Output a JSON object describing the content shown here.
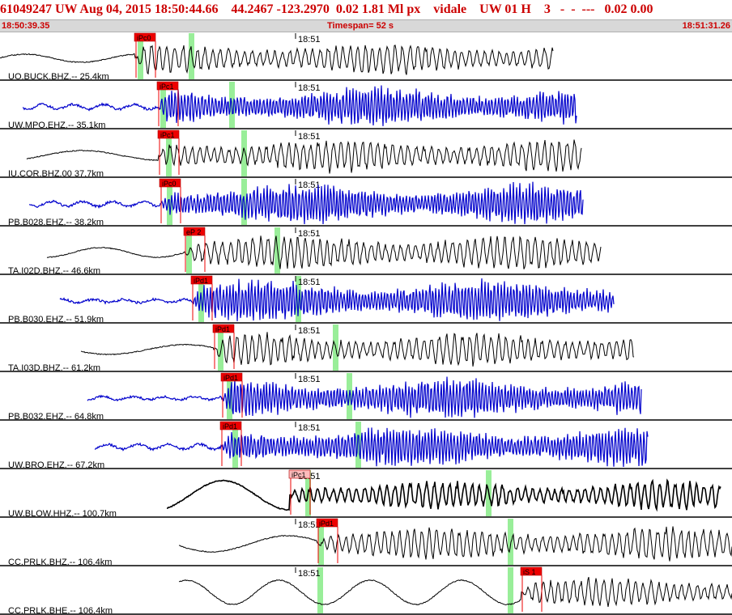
{
  "header": {
    "title": "61049247 UW Aug 04, 2015 18:50:44.66    44.2467 -123.2970  0.02 1.81 Ml px    vidale    UW 01 H    3   -  -  ---   0.02 0.00",
    "start_time": "18:50:39.35",
    "timespan_label": "Timespan=  52 s",
    "end_time": "18:51:31.26"
  },
  "colors": {
    "accent": "#cc0000",
    "blue": "#0000cc",
    "black": "#000000",
    "green": "#99ee99",
    "pick_red": "#ee0000"
  },
  "minute_mark": "18:51",
  "channels": [
    {
      "label": "UO.BUCK.BHZ.-- 25.4km",
      "color": "black",
      "pick": "iPc0"
    },
    {
      "label": "UW.MPO.EHZ.-- 35.1km",
      "color": "blue",
      "pick": "iPc1"
    },
    {
      "label": "IU.COR.BHZ.00 37.7km",
      "color": "black",
      "pick": "iPc1"
    },
    {
      "label": "PB.B028.EHZ.-- 38.2km",
      "color": "blue",
      "pick": "iPc0"
    },
    {
      "label": "TA.I02D.BHZ.-- 46.6km",
      "color": "black",
      "pick": "eP 2"
    },
    {
      "label": "PB.B030.EHZ.-- 51.9km",
      "color": "blue",
      "pick": "iPd1"
    },
    {
      "label": "TA.I03D.BHZ.-- 61.2km",
      "color": "black",
      "pick": "iPd1"
    },
    {
      "label": "PB.B032.EHZ.-- 64.8km",
      "color": "blue",
      "pick": "iPd1"
    },
    {
      "label": "UW.BRO.EHZ.-- 67.2km",
      "color": "blue",
      "pick": "iPd1"
    },
    {
      "label": "UW.BLOW.HHZ.-- 100.7km",
      "color": "black",
      "pick": "iPc1"
    },
    {
      "label": "CC.PRLK.BHZ.-- 106.4km",
      "color": "black",
      "pick": "iPd1"
    },
    {
      "label": "CC.PRLK.BHE.-- 106.4km",
      "color": "black",
      "pick": "iS 1"
    }
  ]
}
